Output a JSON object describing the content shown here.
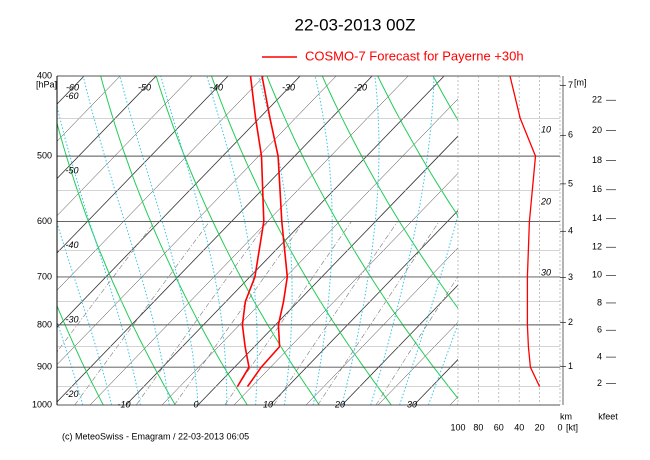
{
  "chart_data": {
    "type": "emagram",
    "title": "22-03-2013  00Z",
    "series": [
      {
        "name": "COSMO-7 Forecast for Payerne   +30h",
        "color": "#ff0000",
        "pressure": [
          950,
          900,
          850,
          800,
          750,
          700,
          600,
          500,
          450,
          400
        ],
        "temperature": [
          4.4,
          3.7,
          3.5,
          0.4,
          -2,
          -4.8,
          -13,
          -22.3,
          -28.5,
          -35.3
        ],
        "dewpoint": [
          3,
          2,
          -1.3,
          -4.6,
          -7.3,
          -9.3,
          -15.5,
          -24.6,
          -30.5,
          -36.9
        ],
        "wind_speed": [
          20,
          29,
          31,
          32,
          32,
          32,
          30,
          24,
          39,
          49
        ]
      }
    ],
    "pressure_axis": {
      "label": "[hPa]",
      "ylim": [
        1000,
        400
      ],
      "yticks": [
        400,
        500,
        600,
        700,
        800,
        900,
        1000
      ],
      "log": true
    },
    "temperature_ticks": {
      "bottom": [
        -10,
        0,
        10,
        20,
        30
      ],
      "top": [
        -60,
        -50,
        -40,
        -30,
        -20
      ],
      "left": [
        -60,
        -50,
        -40,
        -30,
        -20
      ]
    },
    "wind_axis": {
      "xlim": [
        100,
        0
      ],
      "xticks": [
        100,
        80,
        60,
        40,
        20,
        0
      ],
      "unit": "[kt]"
    },
    "height_axis": {
      "unit": "[m]",
      "label": "km",
      "ticks": [
        1,
        2,
        3,
        4,
        5,
        6,
        7
      ]
    },
    "feet_axis": {
      "label": "kfeet",
      "ticks": [
        2,
        4,
        6,
        8,
        10,
        12,
        14,
        16,
        18,
        20,
        22
      ]
    },
    "mixing_labels": [
      10,
      20,
      30
    ],
    "footer": "(c) MeteoSwiss - Emagram  /  22-03-2013  06:05"
  }
}
